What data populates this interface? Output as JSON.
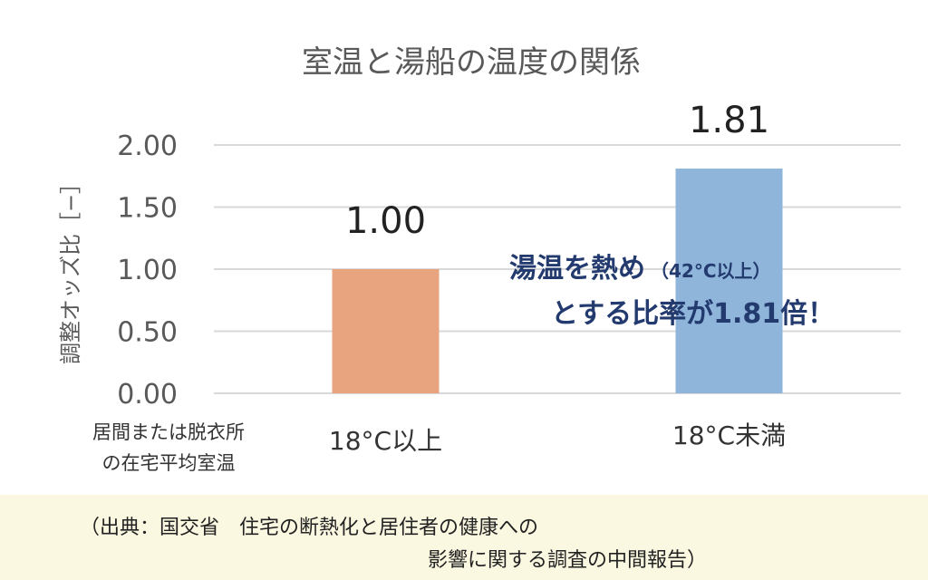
{
  "chart_data": {
    "type": "bar",
    "title": "室温と湯船の温度の関係",
    "ylabel": "調整オッズ比［−］",
    "xlabel_lines": [
      "居間または脱衣所",
      "の在宅平均室温"
    ],
    "categories": [
      "18°C以上",
      "18°C未満"
    ],
    "values": [
      1.0,
      1.81
    ],
    "value_labels": [
      "1.00",
      "1.81"
    ],
    "bar_colors": [
      "#e8a47f",
      "#8fb5da"
    ],
    "ylim": [
      0,
      2.0
    ],
    "yticks": [
      "0.00",
      "0.50",
      "1.00",
      "1.50",
      "2.00"
    ],
    "grid": true,
    "annotation": {
      "line1_main": "湯温を熱め",
      "line1_sub": "（42°C以上）",
      "line2": "とする比率が1.81倍！"
    }
  },
  "source": {
    "line1": "（出典：国交省　住宅の断熱化と居住者の健康への",
    "line2": "影響に関する調査の中間報告）"
  }
}
